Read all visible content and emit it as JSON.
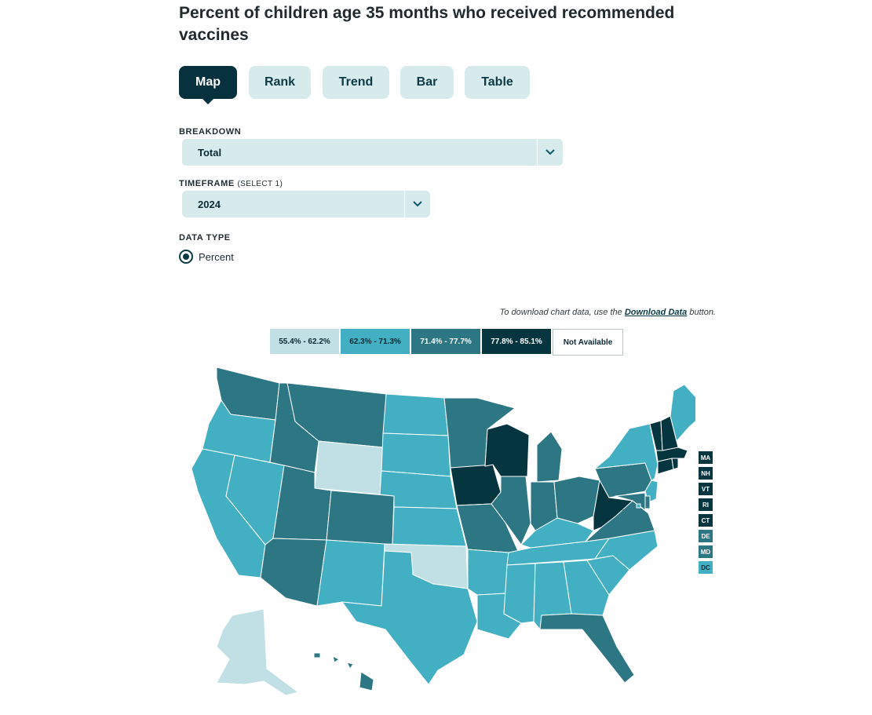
{
  "page": {
    "title": "Percent of children age 35 months who received recommended vaccines"
  },
  "tabs": [
    {
      "label": "Map",
      "active": true
    },
    {
      "label": "Rank",
      "active": false
    },
    {
      "label": "Trend",
      "active": false
    },
    {
      "label": "Bar",
      "active": false
    },
    {
      "label": "Table",
      "active": false
    }
  ],
  "filters": {
    "breakdown_label": "BREAKDOWN",
    "breakdown_value": "Total",
    "timeframe_label": "TIMEFRAME",
    "timeframe_sub": "(SELECT 1)",
    "timeframe_value": "2024",
    "datatype_label": "DATA TYPE",
    "datatype_option": "Percent"
  },
  "download_note": {
    "prefix": "To download chart data, use the ",
    "link": "Download Data",
    "suffix": " button."
  },
  "legend": [
    {
      "label": "55.4% - 62.2%",
      "color": "#c1e0e6",
      "text_color": "#0b2a33"
    },
    {
      "label": "62.3% - 71.3%",
      "color": "#42afc3",
      "text_color": "#0b2a33"
    },
    {
      "label": "71.4% - 77.7%",
      "color": "#2d7683",
      "text_color": "#ffffff"
    },
    {
      "label": "77.8% - 85.1%",
      "color": "#053640",
      "text_color": "#ffffff"
    },
    {
      "label": "Not Available",
      "color": "#ffffff",
      "text_color": "#0b2a33"
    }
  ],
  "small_states": [
    {
      "code": "MA",
      "bin": 3
    },
    {
      "code": "NH",
      "bin": 3
    },
    {
      "code": "VT",
      "bin": 3
    },
    {
      "code": "RI",
      "bin": 3
    },
    {
      "code": "CT",
      "bin": 3
    },
    {
      "code": "DE",
      "bin": 2
    },
    {
      "code": "MD",
      "bin": 2
    },
    {
      "code": "DC",
      "bin": 1
    }
  ],
  "chart_data": {
    "type": "map",
    "title": "Percent of children age 35 months who received recommended vaccines",
    "timeframe": "2024",
    "breakdown": "Total",
    "bins": [
      "55.4% - 62.2%",
      "62.3% - 71.3%",
      "71.4% - 77.7%",
      "77.8% - 85.1%",
      "Not Available"
    ],
    "state_bins": {
      "WA": 2,
      "OR": 1,
      "CA": 1,
      "NV": 1,
      "ID": 2,
      "MT": 2,
      "WY": 0,
      "UT": 2,
      "AZ": 2,
      "CO": 2,
      "NM": 1,
      "ND": 1,
      "SD": 1,
      "NE": 1,
      "KS": 1,
      "OK": 0,
      "TX": 1,
      "MN": 2,
      "IA": 3,
      "MO": 2,
      "AR": 1,
      "LA": 1,
      "WI": 3,
      "IL": 2,
      "MI": 2,
      "IN": 2,
      "OH": 2,
      "KY": 1,
      "TN": 1,
      "MS": 1,
      "AL": 1,
      "GA": 1,
      "FL": 2,
      "SC": 1,
      "NC": 1,
      "VA": 2,
      "WV": 3,
      "PA": 2,
      "NY": 1,
      "NJ": 1,
      "DE": 2,
      "MD": 2,
      "DC": 1,
      "CT": 3,
      "RI": 3,
      "MA": 3,
      "VT": 3,
      "NH": 3,
      "ME": 1,
      "AK": 0,
      "HI": 2
    }
  }
}
